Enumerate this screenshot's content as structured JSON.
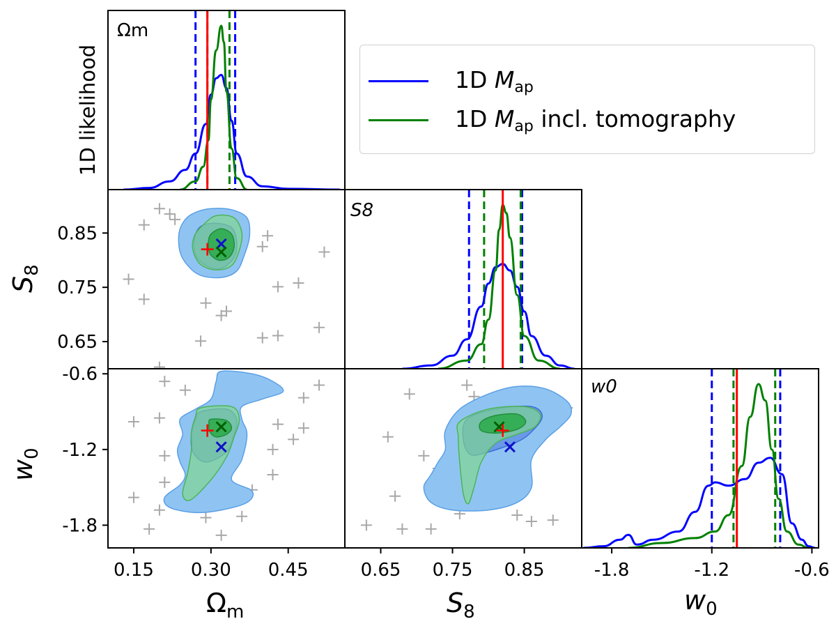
{
  "chart_data": {
    "type": "corner",
    "params": [
      {
        "id": "om",
        "label": "Ωm",
        "panel_label": "Ωm",
        "range": [
          0.1,
          0.56
        ],
        "ticks": [
          "0.15",
          "0.30",
          "0.45"
        ],
        "tick_values": [
          0.15,
          0.3,
          0.45
        ]
      },
      {
        "id": "s8",
        "label": "S8",
        "panel_label": "S8",
        "range": [
          0.6,
          0.93
        ],
        "ticks": [
          "0.65",
          "0.75",
          "0.85"
        ],
        "tick_values": [
          0.65,
          0.75,
          0.85
        ]
      },
      {
        "id": "w0",
        "label": "w0",
        "panel_label": "w0",
        "range": [
          -1.98,
          -0.56
        ],
        "ticks": [
          "-1.8",
          "-1.2",
          "-0.6"
        ],
        "tick_values": [
          -1.8,
          -1.2,
          -0.6
        ]
      }
    ],
    "ylabel_1d": "1D likelihood",
    "truth_color": "#ff0000",
    "legend": [
      {
        "name_pre": "1D ",
        "name_sym": "M",
        "name_sub": "ap",
        "name_post": "",
        "color": "#0000ff"
      },
      {
        "name_pre": "1D ",
        "name_sym": "M",
        "name_sub": "ap",
        "name_post": " incl. tomography",
        "color": "#008000"
      }
    ],
    "truth": {
      "om": 0.293,
      "s8": 0.82,
      "w0": -1.05
    },
    "best_fit": {
      "blue": {
        "om": 0.32,
        "s8": 0.83,
        "w0": -1.18
      },
      "green": {
        "om": 0.32,
        "s8": 0.815,
        "w0": -1.02
      }
    },
    "marginals": {
      "om": {
        "blue": {
          "x": [
            0.13,
            0.18,
            0.22,
            0.25,
            0.27,
            0.29,
            0.3,
            0.31,
            0.32,
            0.33,
            0.34,
            0.35,
            0.37,
            0.4,
            0.45,
            0.55
          ],
          "y": [
            0.0,
            0.01,
            0.05,
            0.12,
            0.22,
            0.4,
            0.58,
            0.68,
            0.7,
            0.62,
            0.42,
            0.22,
            0.08,
            0.02,
            0.005,
            0.0
          ]
        },
        "green": {
          "x": [
            0.24,
            0.27,
            0.285,
            0.295,
            0.3,
            0.31,
            0.32,
            0.325,
            0.33,
            0.34,
            0.35,
            0.37
          ],
          "y": [
            0.0,
            0.05,
            0.14,
            0.3,
            0.55,
            0.85,
            1.0,
            0.9,
            0.6,
            0.25,
            0.07,
            0.0
          ]
        },
        "blue_ci": [
          0.27,
          0.347
        ],
        "green_ci": [
          0.293,
          0.336
        ]
      },
      "s8": {
        "blue": {
          "x": [
            0.68,
            0.72,
            0.75,
            0.77,
            0.79,
            0.8,
            0.81,
            0.82,
            0.83,
            0.84,
            0.85,
            0.86,
            0.88,
            0.9,
            0.92
          ],
          "y": [
            0.0,
            0.02,
            0.08,
            0.18,
            0.38,
            0.52,
            0.62,
            0.64,
            0.6,
            0.5,
            0.35,
            0.2,
            0.08,
            0.02,
            0.0
          ]
        },
        "green": {
          "x": [
            0.73,
            0.77,
            0.79,
            0.8,
            0.81,
            0.815,
            0.82,
            0.825,
            0.83,
            0.84,
            0.85,
            0.87,
            0.9
          ],
          "y": [
            0.0,
            0.05,
            0.15,
            0.3,
            0.6,
            0.85,
            1.0,
            0.95,
            0.8,
            0.45,
            0.2,
            0.05,
            0.0
          ]
        },
        "blue_ci": [
          0.773,
          0.847
        ],
        "green_ci": [
          0.794,
          0.845
        ]
      },
      "w0": {
        "blue": {
          "x": [
            -1.97,
            -1.85,
            -1.75,
            -1.7,
            -1.65,
            -1.55,
            -1.4,
            -1.3,
            -1.22,
            -1.18,
            -1.1,
            -1.0,
            -0.92,
            -0.85,
            -0.78,
            -0.72,
            -0.66,
            -0.62,
            -0.58
          ],
          "y": [
            0.0,
            0.01,
            0.05,
            0.08,
            0.02,
            0.05,
            0.1,
            0.22,
            0.38,
            0.4,
            0.38,
            0.42,
            0.52,
            0.55,
            0.45,
            0.15,
            0.05,
            0.01,
            0.0
          ]
        },
        "green": {
          "x": [
            -1.7,
            -1.5,
            -1.3,
            -1.18,
            -1.1,
            -1.02,
            -0.97,
            -0.92,
            -0.88,
            -0.84,
            -0.8,
            -0.75,
            -0.68,
            -0.62
          ],
          "y": [
            0.0,
            0.03,
            0.06,
            0.1,
            0.2,
            0.5,
            0.8,
            1.0,
            0.9,
            0.6,
            0.3,
            0.1,
            0.02,
            0.0
          ]
        },
        "blue_ci": [
          -1.2,
          -0.79
        ],
        "green_ci": [
          -1.07,
          -0.82
        ]
      }
    },
    "grid_points_om_s8": [
      {
        "om": 0.17,
        "s8": 0.865
      },
      {
        "om": 0.22,
        "s8": 0.885
      },
      {
        "om": 0.23,
        "s8": 0.875
      },
      {
        "om": 0.2,
        "s8": 0.895
      },
      {
        "om": 0.14,
        "s8": 0.765
      },
      {
        "om": 0.17,
        "s8": 0.728
      },
      {
        "om": 0.32,
        "s8": 0.786
      },
      {
        "om": 0.29,
        "s8": 0.721
      },
      {
        "om": 0.32,
        "s8": 0.698
      },
      {
        "om": 0.33,
        "s8": 0.706
      },
      {
        "om": 0.4,
        "s8": 0.825
      },
      {
        "om": 0.41,
        "s8": 0.845
      },
      {
        "om": 0.43,
        "s8": 0.751
      },
      {
        "om": 0.47,
        "s8": 0.758
      },
      {
        "om": 0.52,
        "s8": 0.815
      },
      {
        "om": 0.4,
        "s8": 0.657
      },
      {
        "om": 0.43,
        "s8": 0.661
      },
      {
        "om": 0.51,
        "s8": 0.676
      },
      {
        "om": 0.28,
        "s8": 0.651
      },
      {
        "om": 0.2,
        "s8": 0.603
      }
    ],
    "grid_points_om_w0": [
      {
        "om": 0.21,
        "w0": -0.66
      },
      {
        "om": 0.25,
        "w0": -0.73
      },
      {
        "om": 0.51,
        "w0": -0.69
      },
      {
        "om": 0.48,
        "w0": -0.79
      },
      {
        "om": 0.15,
        "w0": -0.98
      },
      {
        "om": 0.2,
        "w0": -0.95
      },
      {
        "om": 0.43,
        "w0": -1.0
      },
      {
        "om": 0.48,
        "w0": -1.03
      },
      {
        "om": 0.46,
        "w0": -1.12
      },
      {
        "om": 0.21,
        "w0": -1.25
      },
      {
        "om": 0.42,
        "w0": -1.2
      },
      {
        "om": 0.42,
        "w0": -1.4
      },
      {
        "om": 0.15,
        "w0": -1.58
      },
      {
        "om": 0.21,
        "w0": -1.46
      },
      {
        "om": 0.2,
        "w0": -1.68
      },
      {
        "om": 0.18,
        "w0": -1.83
      },
      {
        "om": 0.29,
        "w0": -1.74
      },
      {
        "om": 0.36,
        "w0": -1.73
      },
      {
        "om": 0.32,
        "w0": -1.88
      },
      {
        "om": 0.38,
        "w0": -1.52
      }
    ],
    "grid_points_s8_w0": [
      {
        "s8": 0.69,
        "w0": -0.76
      },
      {
        "s8": 0.77,
        "w0": -0.69
      },
      {
        "s8": 0.78,
        "w0": -0.78
      },
      {
        "s8": 0.66,
        "w0": -1.1
      },
      {
        "s8": 0.71,
        "w0": -1.25
      },
      {
        "s8": 0.73,
        "w0": -1.35
      },
      {
        "s8": 0.67,
        "w0": -1.57
      },
      {
        "s8": 0.63,
        "w0": -1.8
      },
      {
        "s8": 0.68,
        "w0": -1.83
      },
      {
        "s8": 0.72,
        "w0": -1.83
      },
      {
        "s8": 0.84,
        "w0": -1.72
      },
      {
        "s8": 0.86,
        "w0": -1.77
      },
      {
        "s8": 0.89,
        "w0": -1.76
      },
      {
        "s8": 0.87,
        "w0": -0.83
      },
      {
        "s8": 0.91,
        "w0": -0.87
      },
      {
        "s8": 0.76,
        "w0": -1.71
      },
      {
        "s8": 0.74,
        "w0": -1.48
      },
      {
        "s8": 0.81,
        "w0": -0.84
      }
    ],
    "contours": {
      "om_s8": {
        "blue_outer": [
          [
            0.27,
            0.888
          ],
          [
            0.3,
            0.895
          ],
          [
            0.34,
            0.893
          ],
          [
            0.37,
            0.878
          ],
          [
            0.375,
            0.845
          ],
          [
            0.365,
            0.81
          ],
          [
            0.35,
            0.78
          ],
          [
            0.32,
            0.768
          ],
          [
            0.28,
            0.772
          ],
          [
            0.255,
            0.79
          ],
          [
            0.24,
            0.815
          ],
          [
            0.238,
            0.85
          ],
          [
            0.25,
            0.875
          ]
        ],
        "blue_inner": [
          [
            0.28,
            0.862
          ],
          [
            0.31,
            0.868
          ],
          [
            0.34,
            0.86
          ],
          [
            0.35,
            0.835
          ],
          [
            0.345,
            0.805
          ],
          [
            0.32,
            0.785
          ],
          [
            0.29,
            0.79
          ],
          [
            0.27,
            0.81
          ],
          [
            0.268,
            0.84
          ]
        ],
        "green_outer": [
          [
            0.285,
            0.865
          ],
          [
            0.31,
            0.882
          ],
          [
            0.345,
            0.878
          ],
          [
            0.36,
            0.85
          ],
          [
            0.355,
            0.818
          ],
          [
            0.34,
            0.79
          ],
          [
            0.31,
            0.782
          ],
          [
            0.28,
            0.792
          ],
          [
            0.265,
            0.818
          ],
          [
            0.268,
            0.845
          ]
        ],
        "green_inner": [
          [
            0.3,
            0.848
          ],
          [
            0.32,
            0.858
          ],
          [
            0.34,
            0.848
          ],
          [
            0.345,
            0.825
          ],
          [
            0.335,
            0.805
          ],
          [
            0.315,
            0.8
          ],
          [
            0.298,
            0.812
          ],
          [
            0.295,
            0.832
          ]
        ]
      },
      "om_w0": {
        "blue_outer": [
          [
            0.32,
            -0.58
          ],
          [
            0.38,
            -0.6
          ],
          [
            0.42,
            -0.66
          ],
          [
            0.44,
            -0.74
          ],
          [
            0.4,
            -0.8
          ],
          [
            0.36,
            -0.86
          ],
          [
            0.36,
            -0.96
          ],
          [
            0.37,
            -1.08
          ],
          [
            0.36,
            -1.28
          ],
          [
            0.34,
            -1.44
          ],
          [
            0.38,
            -1.53
          ],
          [
            0.37,
            -1.62
          ],
          [
            0.32,
            -1.68
          ],
          [
            0.27,
            -1.7
          ],
          [
            0.22,
            -1.66
          ],
          [
            0.21,
            -1.58
          ],
          [
            0.24,
            -1.48
          ],
          [
            0.25,
            -1.4
          ],
          [
            0.24,
            -1.3
          ],
          [
            0.235,
            -1.2
          ],
          [
            0.245,
            -1.08
          ],
          [
            0.24,
            -0.96
          ],
          [
            0.27,
            -0.88
          ],
          [
            0.3,
            -0.8
          ],
          [
            0.31,
            -0.66
          ]
        ],
        "blue_inner": [
          [
            0.28,
            -0.9
          ],
          [
            0.33,
            -0.88
          ],
          [
            0.35,
            -0.96
          ],
          [
            0.345,
            -1.08
          ],
          [
            0.33,
            -1.22
          ],
          [
            0.29,
            -1.3
          ],
          [
            0.265,
            -1.22
          ],
          [
            0.262,
            -1.08
          ],
          [
            0.27,
            -0.96
          ]
        ],
        "green_outer": [
          [
            0.28,
            -0.87
          ],
          [
            0.34,
            -0.86
          ],
          [
            0.355,
            -0.96
          ],
          [
            0.345,
            -1.1
          ],
          [
            0.33,
            -1.26
          ],
          [
            0.3,
            -1.44
          ],
          [
            0.26,
            -1.6
          ],
          [
            0.245,
            -1.55
          ],
          [
            0.255,
            -1.38
          ],
          [
            0.262,
            -1.2
          ],
          [
            0.262,
            -1.06
          ],
          [
            0.27,
            -0.94
          ]
        ],
        "green_inner": [
          [
            0.3,
            -0.96
          ],
          [
            0.33,
            -0.97
          ],
          [
            0.34,
            -1.03
          ],
          [
            0.33,
            -1.08
          ],
          [
            0.31,
            -1.1
          ],
          [
            0.298,
            -1.06
          ],
          [
            0.296,
            -1.0
          ]
        ]
      },
      "s8_w0": {
        "blue_outer": [
          [
            0.76,
            -0.88
          ],
          [
            0.8,
            -0.76
          ],
          [
            0.84,
            -0.7
          ],
          [
            0.88,
            -0.72
          ],
          [
            0.91,
            -0.82
          ],
          [
            0.915,
            -0.92
          ],
          [
            0.9,
            -1.02
          ],
          [
            0.88,
            -1.12
          ],
          [
            0.86,
            -1.28
          ],
          [
            0.86,
            -1.5
          ],
          [
            0.84,
            -1.62
          ],
          [
            0.8,
            -1.68
          ],
          [
            0.75,
            -1.68
          ],
          [
            0.72,
            -1.62
          ],
          [
            0.71,
            -1.5
          ],
          [
            0.72,
            -1.4
          ],
          [
            0.73,
            -1.3
          ],
          [
            0.74,
            -1.2
          ],
          [
            0.74,
            -1.05
          ]
        ],
        "blue_inner": [
          [
            0.77,
            -0.96
          ],
          [
            0.81,
            -0.88
          ],
          [
            0.86,
            -0.86
          ],
          [
            0.875,
            -0.94
          ],
          [
            0.86,
            -1.06
          ],
          [
            0.84,
            -1.14
          ],
          [
            0.8,
            -1.22
          ],
          [
            0.775,
            -1.24
          ],
          [
            0.765,
            -1.12
          ]
        ],
        "green_outer": [
          [
            0.76,
            -0.98
          ],
          [
            0.8,
            -0.88
          ],
          [
            0.85,
            -0.86
          ],
          [
            0.872,
            -0.92
          ],
          [
            0.865,
            -1.02
          ],
          [
            0.84,
            -1.08
          ],
          [
            0.81,
            -1.15
          ],
          [
            0.79,
            -1.3
          ],
          [
            0.78,
            -1.5
          ],
          [
            0.772,
            -1.63
          ],
          [
            0.765,
            -1.55
          ],
          [
            0.76,
            -1.3
          ],
          [
            0.758,
            -1.1
          ]
        ],
        "green_inner": [
          [
            0.79,
            -0.98
          ],
          [
            0.81,
            -0.93
          ],
          [
            0.84,
            -0.92
          ],
          [
            0.852,
            -0.98
          ],
          [
            0.84,
            -1.04
          ],
          [
            0.812,
            -1.07
          ],
          [
            0.79,
            -1.05
          ]
        ]
      }
    }
  }
}
